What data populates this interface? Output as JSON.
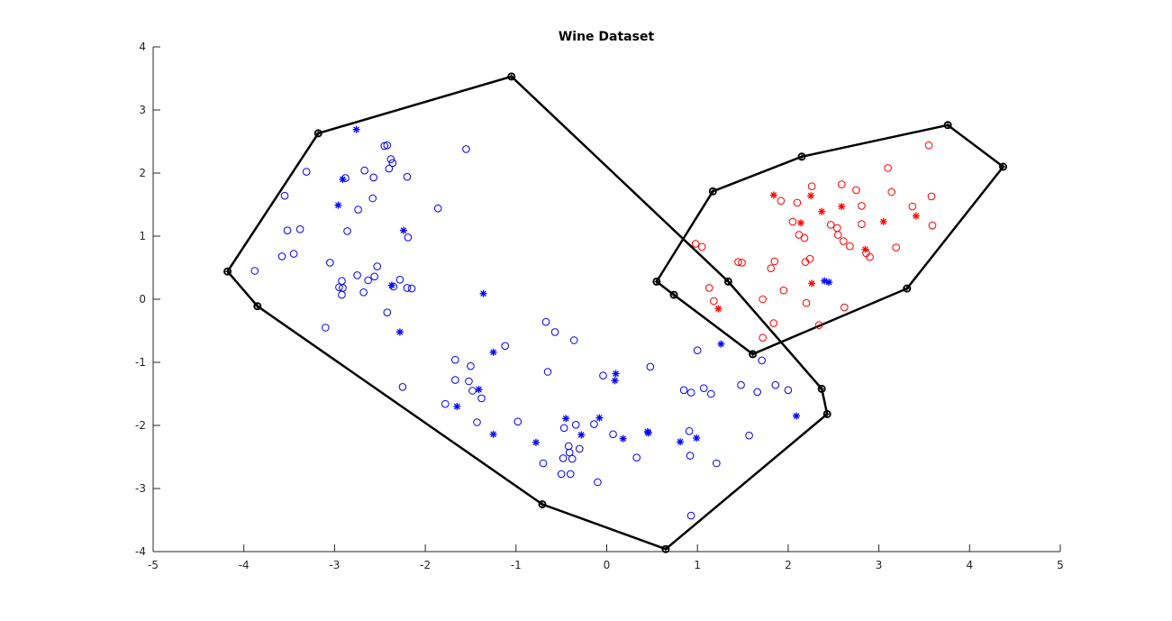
{
  "chart_data": {
    "type": "scatter",
    "title": "Wine Dataset",
    "xlabel": "",
    "ylabel": "",
    "xlim": [
      -5,
      5
    ],
    "ylim": [
      -4,
      4
    ],
    "xticks": [
      -5,
      -4,
      -3,
      -2,
      -1,
      0,
      1,
      2,
      3,
      4,
      5
    ],
    "yticks": [
      -4,
      -3,
      -2,
      -1,
      0,
      1,
      2,
      3,
      4
    ],
    "grid": false,
    "colors": {
      "blue": "#0000ff",
      "red": "#ff0000",
      "hull": "#000000",
      "axis": "#262626"
    },
    "series": [
      {
        "color": "#0000ff",
        "marker": "circle",
        "points": [
          [
            -3.88,
            0.45
          ],
          [
            -3.55,
            1.64
          ],
          [
            -3.52,
            1.09
          ],
          [
            -3.58,
            0.68
          ],
          [
            -3.45,
            0.72
          ],
          [
            -3.38,
            1.11
          ],
          [
            -3.31,
            2.02
          ],
          [
            -3.1,
            -0.45
          ],
          [
            -3.05,
            0.58
          ],
          [
            -2.95,
            0.19
          ],
          [
            -2.92,
            0.29
          ],
          [
            -2.91,
            0.18
          ],
          [
            -2.92,
            0.07
          ],
          [
            -2.88,
            1.92
          ],
          [
            -2.86,
            1.08
          ],
          [
            -2.75,
            0.38
          ],
          [
            -2.74,
            1.42
          ],
          [
            -2.68,
            0.11
          ],
          [
            -2.67,
            2.04
          ],
          [
            -2.63,
            0.3
          ],
          [
            -2.58,
            1.6
          ],
          [
            -2.57,
            1.93
          ],
          [
            -2.56,
            0.36
          ],
          [
            -2.53,
            0.52
          ],
          [
            -2.45,
            2.43
          ],
          [
            -2.42,
            2.44
          ],
          [
            -2.42,
            -0.21
          ],
          [
            -2.4,
            2.07
          ],
          [
            -2.38,
            2.22
          ],
          [
            -2.36,
            2.16
          ],
          [
            -2.35,
            0.2
          ],
          [
            -2.28,
            0.31
          ],
          [
            -2.25,
            -1.39
          ],
          [
            -2.2,
            1.94
          ],
          [
            -2.19,
            0.98
          ],
          [
            -2.2,
            0.18
          ],
          [
            -2.15,
            0.17
          ],
          [
            -1.86,
            1.44
          ],
          [
            -1.78,
            -1.66
          ],
          [
            -1.67,
            -0.96
          ],
          [
            -1.67,
            -1.28
          ],
          [
            -1.55,
            2.38
          ],
          [
            -1.52,
            -1.3
          ],
          [
            -1.5,
            -1.06
          ],
          [
            -1.48,
            -1.45
          ],
          [
            -1.43,
            -1.95
          ],
          [
            -1.38,
            -1.57
          ],
          [
            -1.12,
            -0.74
          ],
          [
            -0.98,
            -1.94
          ],
          [
            -0.7,
            -2.6
          ],
          [
            -0.67,
            -0.36
          ],
          [
            -0.65,
            -1.15
          ],
          [
            -0.57,
            -0.52
          ],
          [
            -0.5,
            -2.77
          ],
          [
            -0.48,
            -2.52
          ],
          [
            -0.47,
            -2.04
          ],
          [
            -0.42,
            -2.33
          ],
          [
            -0.41,
            -2.43
          ],
          [
            -0.4,
            -2.77
          ],
          [
            -0.38,
            -2.53
          ],
          [
            -0.36,
            -0.65
          ],
          [
            -0.34,
            -1.99
          ],
          [
            -0.3,
            -2.37
          ],
          [
            -0.14,
            -1.98
          ],
          [
            -0.1,
            -2.9
          ],
          [
            -0.04,
            -1.21
          ],
          [
            0.07,
            -2.14
          ],
          [
            0.33,
            -2.51
          ],
          [
            0.48,
            -1.07
          ],
          [
            0.85,
            -1.44
          ],
          [
            0.91,
            -2.09
          ],
          [
            0.92,
            -2.48
          ],
          [
            0.93,
            -1.48
          ],
          [
            0.93,
            -3.43
          ],
          [
            1.0,
            -0.81
          ],
          [
            1.07,
            -1.41
          ],
          [
            1.15,
            -1.5
          ],
          [
            1.21,
            -2.6
          ],
          [
            1.48,
            -1.36
          ],
          [
            1.57,
            -2.16
          ],
          [
            1.66,
            -1.47
          ],
          [
            1.71,
            -0.97
          ],
          [
            1.86,
            -1.36
          ],
          [
            2.0,
            -1.44
          ]
        ]
      },
      {
        "color": "#0000ff",
        "marker": "star",
        "points": [
          [
            -2.76,
            2.69
          ],
          [
            -2.96,
            1.49
          ],
          [
            -2.91,
            1.9
          ],
          [
            -2.24,
            1.09
          ],
          [
            -2.37,
            0.22
          ],
          [
            -2.28,
            -0.52
          ],
          [
            -1.36,
            0.09
          ],
          [
            -1.25,
            -0.84
          ],
          [
            -1.41,
            -1.43
          ],
          [
            -1.65,
            -1.7
          ],
          [
            -1.25,
            -2.14
          ],
          [
            -0.78,
            -2.27
          ],
          [
            -0.45,
            -1.89
          ],
          [
            -0.28,
            -2.15
          ],
          [
            -0.08,
            -1.88
          ],
          [
            0.1,
            -1.18
          ],
          [
            0.09,
            -1.29
          ],
          [
            0.18,
            -2.21
          ],
          [
            0.45,
            -2.1
          ],
          [
            0.46,
            -2.12
          ],
          [
            0.81,
            -2.26
          ],
          [
            0.99,
            -2.2
          ],
          [
            1.26,
            -0.71
          ],
          [
            2.09,
            -1.85
          ],
          [
            2.4,
            0.29
          ],
          [
            2.45,
            0.27
          ]
        ]
      },
      {
        "color": "#ff0000",
        "marker": "circle",
        "points": [
          [
            0.98,
            0.88
          ],
          [
            1.05,
            0.83
          ],
          [
            1.13,
            0.18
          ],
          [
            1.18,
            -0.03
          ],
          [
            1.45,
            0.59
          ],
          [
            1.49,
            0.58
          ],
          [
            1.72,
            0.0
          ],
          [
            1.72,
            -0.61
          ],
          [
            1.81,
            0.49
          ],
          [
            1.84,
            -0.38
          ],
          [
            1.85,
            0.6
          ],
          [
            1.92,
            1.56
          ],
          [
            1.95,
            0.14
          ],
          [
            2.05,
            1.23
          ],
          [
            2.1,
            1.53
          ],
          [
            2.12,
            1.02
          ],
          [
            2.18,
            0.97
          ],
          [
            2.19,
            0.59
          ],
          [
            2.2,
            -0.06
          ],
          [
            2.24,
            0.64
          ],
          [
            2.26,
            1.79
          ],
          [
            2.34,
            -0.41
          ],
          [
            2.47,
            1.18
          ],
          [
            2.54,
            1.13
          ],
          [
            2.55,
            1.02
          ],
          [
            2.59,
            1.82
          ],
          [
            2.61,
            0.92
          ],
          [
            2.62,
            -0.13
          ],
          [
            2.68,
            0.84
          ],
          [
            2.75,
            1.73
          ],
          [
            2.81,
            1.48
          ],
          [
            2.81,
            1.19
          ],
          [
            2.86,
            0.73
          ],
          [
            2.9,
            0.67
          ],
          [
            3.1,
            2.08
          ],
          [
            3.14,
            1.7
          ],
          [
            3.19,
            0.82
          ],
          [
            3.37,
            1.47
          ],
          [
            3.55,
            2.44
          ],
          [
            3.58,
            1.63
          ],
          [
            3.59,
            1.17
          ]
        ]
      },
      {
        "color": "#ff0000",
        "marker": "star",
        "points": [
          [
            1.84,
            1.65
          ],
          [
            2.25,
            1.64
          ],
          [
            2.14,
            1.21
          ],
          [
            2.37,
            1.39
          ],
          [
            2.59,
            1.47
          ],
          [
            3.05,
            1.23
          ],
          [
            3.41,
            1.32
          ],
          [
            2.85,
            0.79
          ],
          [
            2.26,
            0.25
          ],
          [
            1.23,
            -0.15
          ]
        ]
      }
    ],
    "hulls": [
      {
        "color": "#000000",
        "vertices": [
          [
            -3.18,
            2.63
          ],
          [
            -1.05,
            3.53
          ],
          [
            1.34,
            0.28
          ],
          [
            2.37,
            -1.42
          ],
          [
            2.43,
            -1.82
          ],
          [
            0.65,
            -3.96
          ],
          [
            -0.71,
            -3.25
          ],
          [
            -3.85,
            -0.11
          ],
          [
            -4.18,
            0.44
          ]
        ]
      },
      {
        "color": "#000000",
        "vertices": [
          [
            2.15,
            2.26
          ],
          [
            3.76,
            2.76
          ],
          [
            4.37,
            2.1
          ],
          [
            3.31,
            0.17
          ],
          [
            1.61,
            -0.87
          ],
          [
            0.74,
            0.07
          ],
          [
            0.55,
            0.28
          ],
          [
            1.17,
            1.71
          ]
        ]
      }
    ]
  }
}
